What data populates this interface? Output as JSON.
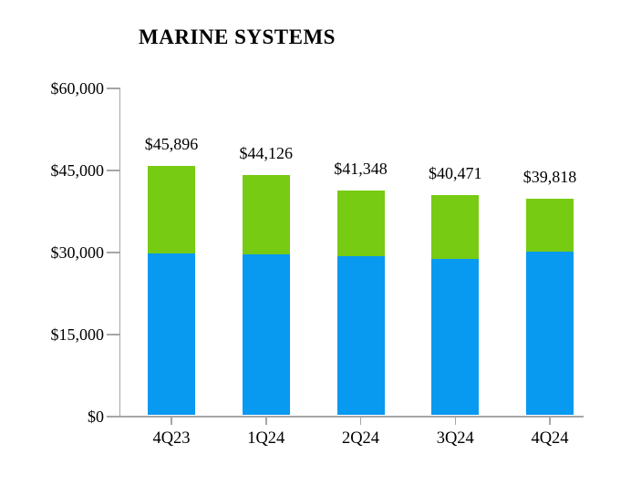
{
  "title": "MARINE SYSTEMS",
  "colors": {
    "bar_bottom_blue": "#0899F1",
    "bar_top_green": "#77CB12",
    "axis_gray": "#A6A6A6",
    "text_black": "#000000"
  },
  "chart_data": {
    "type": "bar",
    "stacked": true,
    "title": "MARINE SYSTEMS",
    "categories": [
      "4Q23",
      "1Q24",
      "2Q24",
      "3Q24",
      "4Q24"
    ],
    "series": [
      {
        "name": "bottom-blue-segment",
        "color": "#0899F1",
        "values": [
          29900,
          29700,
          29400,
          28900,
          30100
        ]
      },
      {
        "name": "top-green-segment",
        "color": "#77CB12",
        "values": [
          15996,
          14426,
          11948,
          11571,
          9718
        ]
      }
    ],
    "segment_split_estimated_from_pixels": true,
    "totals": [
      45896,
      44126,
      41348,
      40471,
      39818
    ],
    "total_labels": [
      "$45,896",
      "$44,126",
      "$41,348",
      "$40,471",
      "$39,818"
    ],
    "xlabel": "",
    "ylabel": "",
    "y_axis": {
      "min": 0,
      "max": 60000,
      "tick_values": [
        0,
        15000,
        30000,
        45000,
        60000
      ],
      "tick_labels": [
        "$0",
        "$15,000",
        "$30,000",
        "$45,000",
        "$60,000"
      ]
    },
    "legend": "none",
    "gridlines": false
  }
}
